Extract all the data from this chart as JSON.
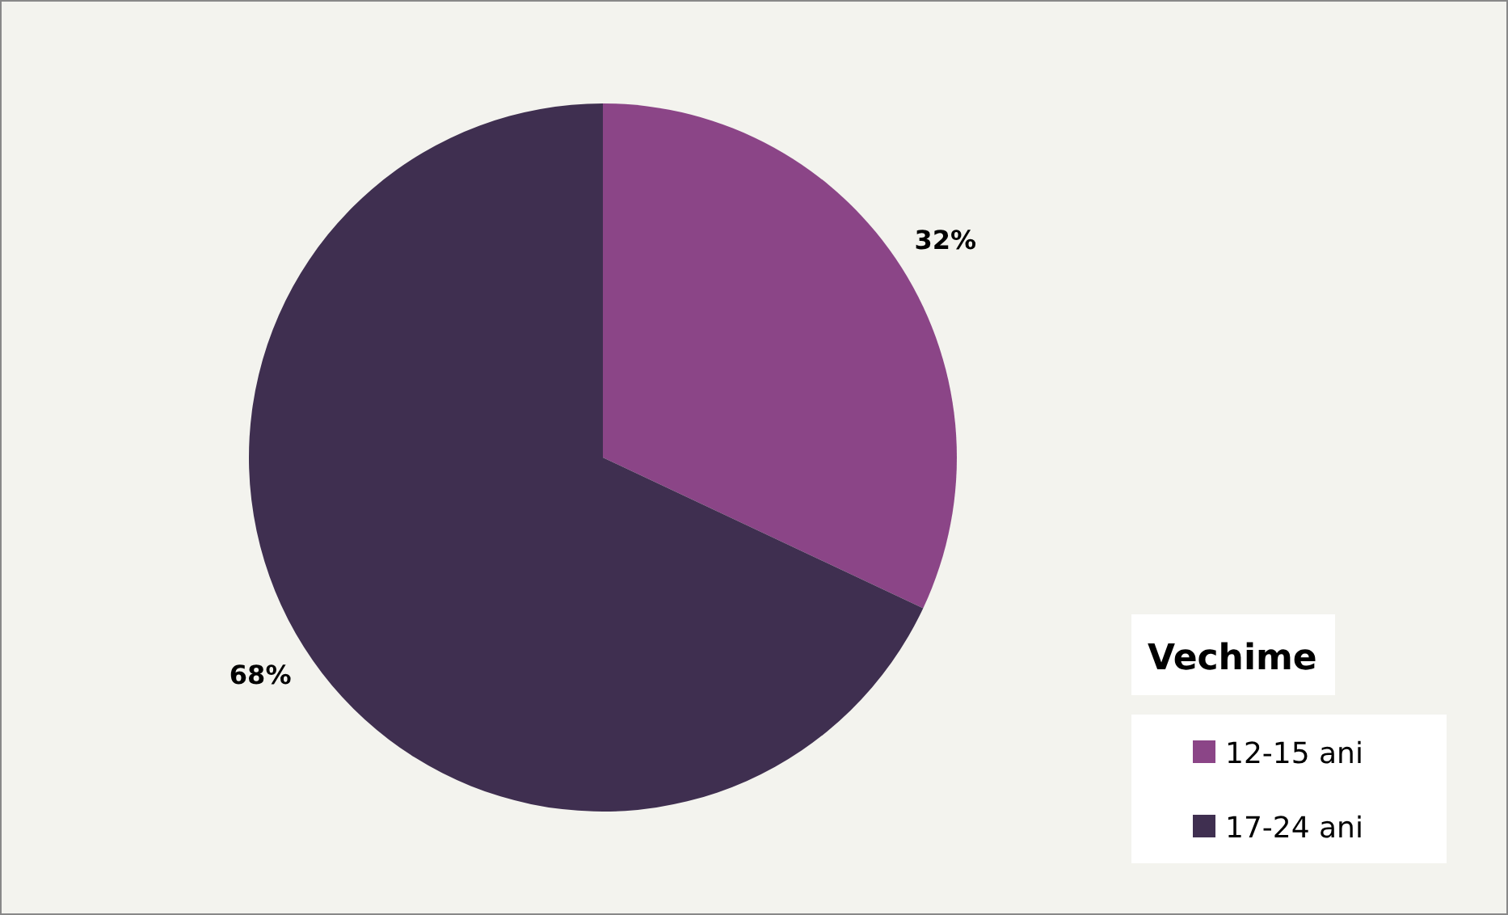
{
  "chart_data": {
    "type": "pie",
    "legend_title": "Vechime",
    "categories": [
      "12-15 ani",
      "17-24 ani"
    ],
    "values": [
      32,
      68
    ],
    "colors": [
      "#8b4587",
      "#3f2f50"
    ],
    "value_labels": [
      "32%",
      "68%"
    ],
    "legend": "right"
  }
}
